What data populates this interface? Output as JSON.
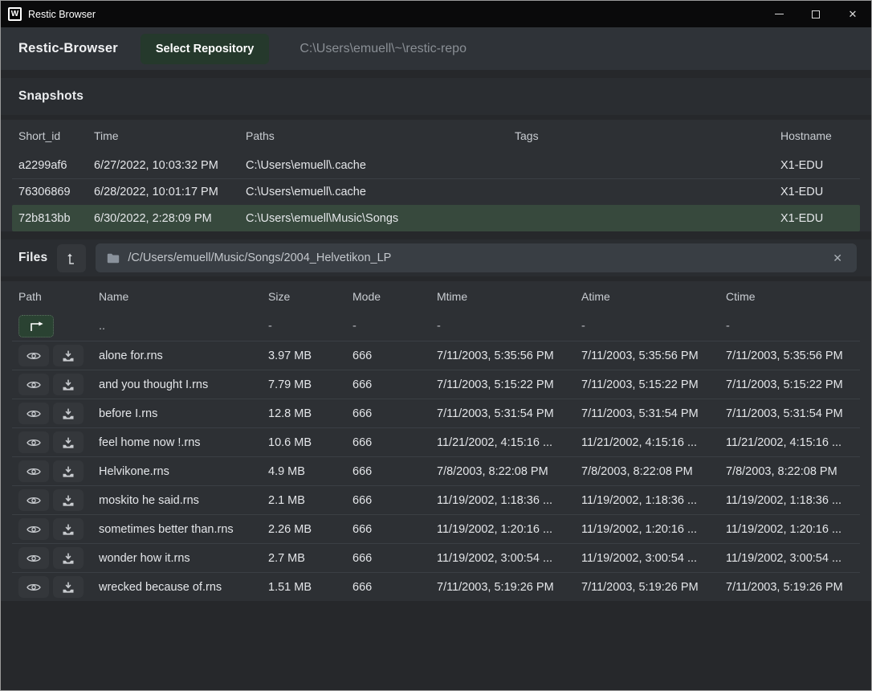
{
  "window": {
    "title": "Restic Browser",
    "logo": "W",
    "controls": {
      "minimize_icon": "–",
      "close_icon": "✕"
    }
  },
  "toolbar": {
    "app_name": "Restic-Browser",
    "select_repository_label": "Select Repository",
    "repository_path": "C:\\Users\\emuell\\~\\restic-repo"
  },
  "snapshots": {
    "title": "Snapshots",
    "columns": [
      "Short_id",
      "Time",
      "Paths",
      "Tags",
      "Hostname"
    ],
    "rows": [
      {
        "short_id": "a2299af6",
        "time": "6/27/2022, 10:03:32 PM",
        "paths": "C:\\Users\\emuell\\.cache",
        "tags": "",
        "hostname": "X1-EDU",
        "selected": false
      },
      {
        "short_id": "76306869",
        "time": "6/28/2022, 10:01:17 PM",
        "paths": "C:\\Users\\emuell\\.cache",
        "tags": "",
        "hostname": "X1-EDU",
        "selected": false
      },
      {
        "short_id": "72b813bb",
        "time": "6/30/2022, 2:28:09 PM",
        "paths": "C:\\Users\\emuell\\Music\\Songs",
        "tags": "",
        "hostname": "X1-EDU",
        "selected": true
      }
    ]
  },
  "files": {
    "title": "Files",
    "path": "/C/Users/emuell/Music/Songs/2004_Helvetikon_LP",
    "clear_path_icon": "✕",
    "columns": [
      "Path",
      "Name",
      "Size",
      "Mode",
      "Mtime",
      "Atime",
      "Ctime"
    ],
    "parent_row": {
      "name": "..",
      "size": "-",
      "mode": "-",
      "mtime": "-",
      "atime": "-",
      "ctime": "-"
    },
    "rows": [
      {
        "name": "alone for.rns",
        "size": "3.97 MB",
        "mode": "666",
        "mtime": "7/11/2003, 5:35:56 PM",
        "atime": "7/11/2003, 5:35:56 PM",
        "ctime": "7/11/2003, 5:35:56 PM"
      },
      {
        "name": "and you thought I.rns",
        "size": "7.79 MB",
        "mode": "666",
        "mtime": "7/11/2003, 5:15:22 PM",
        "atime": "7/11/2003, 5:15:22 PM",
        "ctime": "7/11/2003, 5:15:22 PM"
      },
      {
        "name": "before I.rns",
        "size": "12.8 MB",
        "mode": "666",
        "mtime": "7/11/2003, 5:31:54 PM",
        "atime": "7/11/2003, 5:31:54 PM",
        "ctime": "7/11/2003, 5:31:54 PM"
      },
      {
        "name": "feel home now !.rns",
        "size": "10.6 MB",
        "mode": "666",
        "mtime": "11/21/2002, 4:15:16 ...",
        "atime": "11/21/2002, 4:15:16 ...",
        "ctime": "11/21/2002, 4:15:16 ..."
      },
      {
        "name": "Helvikone.rns",
        "size": "4.9 MB",
        "mode": "666",
        "mtime": "7/8/2003, 8:22:08 PM",
        "atime": "7/8/2003, 8:22:08 PM",
        "ctime": "7/8/2003, 8:22:08 PM"
      },
      {
        "name": "moskito he said.rns",
        "size": "2.1 MB",
        "mode": "666",
        "mtime": "11/19/2002, 1:18:36 ...",
        "atime": "11/19/2002, 1:18:36 ...",
        "ctime": "11/19/2002, 1:18:36 ..."
      },
      {
        "name": "sometimes better than.rns",
        "size": "2.26 MB",
        "mode": "666",
        "mtime": "11/19/2002, 1:20:16 ...",
        "atime": "11/19/2002, 1:20:16 ...",
        "ctime": "11/19/2002, 1:20:16 ..."
      },
      {
        "name": "wonder how it.rns",
        "size": "2.7 MB",
        "mode": "666",
        "mtime": "11/19/2002, 3:00:54 ...",
        "atime": "11/19/2002, 3:00:54 ...",
        "ctime": "11/19/2002, 3:00:54 ..."
      },
      {
        "name": "wrecked because of.rns",
        "size": "1.51 MB",
        "mode": "666",
        "mtime": "7/11/2003, 5:19:26 PM",
        "atime": "7/11/2003, 5:19:26 PM",
        "ctime": "7/11/2003, 5:19:26 PM"
      }
    ]
  },
  "colors": {
    "titlebar_bg": "#0a0a0b",
    "toolbar_bg": "#2f3338",
    "page_bg": "#26282b",
    "panel_bg": "#2d3034",
    "accent_green_button": "#25392c",
    "selected_row_green": "#37493d",
    "updir_button_green": "#2a4232",
    "row_separator": "#3b3f44",
    "text_primary": "#e4e6e9",
    "text_muted": "#8a8f95"
  }
}
